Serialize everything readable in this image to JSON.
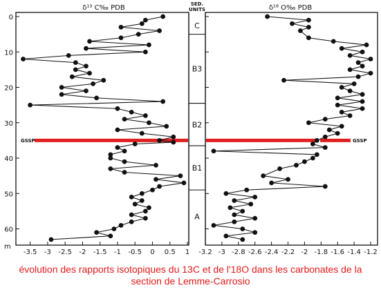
{
  "caption": {
    "line1": "évolution des rapports isotopiques du 13C et de l'18O dans les carbonates de la",
    "line2": "section de Lemme-Carrosio"
  },
  "colors": {
    "gssp_line": "#e02020",
    "ink": "#111111",
    "caption": "#e11a1a"
  },
  "chart_data": [
    {
      "type": "line",
      "title": "δ¹³ C‰ PDB",
      "ylabel": "m",
      "xlim": [
        -3.75,
        1
      ],
      "ylim": [
        0,
        64
      ],
      "x_ticks": [
        "-3.5",
        "-3",
        "-2.5",
        "-2",
        "-1.5",
        "-1",
        "-0.5",
        "0",
        "0.5",
        "1"
      ],
      "y_ticks": [
        "0",
        "10",
        "20",
        "30",
        "40",
        "50",
        "60"
      ],
      "x_tick_values": [
        -3.5,
        -3,
        -2.5,
        -2,
        -1.5,
        -1,
        -0.5,
        0,
        0.5,
        1
      ],
      "y_tick_values": [
        0,
        10,
        20,
        30,
        40,
        50,
        60
      ],
      "grid": false,
      "marker": "filled-circle",
      "gssp_label": "GSSP",
      "gssp_depth": 35,
      "series": [
        {
          "points": [
            [
              0.3,
              0
            ],
            [
              -0.2,
              1
            ],
            [
              -0.3,
              2
            ],
            [
              -0.9,
              3
            ],
            [
              0.2,
              4
            ],
            [
              -0.4,
              5
            ],
            [
              -0.9,
              6
            ],
            [
              -1.8,
              7
            ],
            [
              -0.1,
              8
            ],
            [
              -1.9,
              9
            ],
            [
              -0.2,
              10
            ],
            [
              -2.4,
              11
            ],
            [
              -3.7,
              12
            ],
            [
              -2.2,
              13
            ],
            [
              -1.9,
              14
            ],
            [
              -2.2,
              15
            ],
            [
              -1.8,
              16
            ],
            [
              -2.3,
              17
            ],
            [
              -1.4,
              18
            ],
            [
              -1.7,
              19
            ],
            [
              -2.6,
              20
            ],
            [
              -1.9,
              21
            ],
            [
              -2.6,
              22
            ],
            [
              -1.6,
              23
            ],
            [
              0.3,
              24
            ],
            [
              -3.5,
              25
            ],
            [
              -1.0,
              26
            ],
            [
              -0.6,
              27
            ],
            [
              -0.2,
              28
            ],
            [
              -0.8,
              29
            ],
            [
              -0.1,
              30
            ],
            [
              0.4,
              31
            ],
            [
              -1.0,
              32
            ],
            [
              -0.3,
              33
            ],
            [
              0.6,
              34
            ],
            [
              0.2,
              35
            ],
            [
              0.6,
              35.5
            ],
            [
              -0.5,
              36
            ],
            [
              -1.0,
              37
            ],
            [
              -0.8,
              38
            ],
            [
              -1.2,
              39
            ],
            [
              -1.2,
              40
            ],
            [
              -0.8,
              41
            ],
            [
              0.1,
              42
            ],
            [
              -1.2,
              43
            ],
            [
              -0.8,
              44
            ],
            [
              0.8,
              45
            ],
            [
              0.1,
              46
            ],
            [
              0.9,
              47
            ],
            [
              0.2,
              48
            ],
            [
              0.0,
              49
            ],
            [
              -0.3,
              50
            ],
            [
              -0.6,
              51
            ],
            [
              -0.3,
              52
            ],
            [
              -0.5,
              53
            ],
            [
              -0.1,
              54
            ],
            [
              -0.2,
              55
            ],
            [
              -0.6,
              56
            ],
            [
              -0.2,
              57
            ],
            [
              -0.6,
              58
            ],
            [
              -0.9,
              59
            ],
            [
              -1.1,
              60
            ],
            [
              -1.6,
              61
            ],
            [
              -1.2,
              62
            ],
            [
              -2.9,
              63
            ]
          ]
        }
      ]
    },
    {
      "type": "line",
      "title": "δ¹⁸ O‰ PDB",
      "xlim": [
        -3.2,
        -1.15
      ],
      "ylim": [
        0,
        64
      ],
      "x_ticks": [
        "-3.2",
        "-3",
        "-2.8",
        "-2.6",
        "-2.4",
        "-2.2",
        "-2",
        "-1.8",
        "-1.6",
        "-1.4",
        "-1.2"
      ],
      "x_tick_values": [
        -3.2,
        -3.0,
        -2.8,
        -2.6,
        -2.4,
        -2.2,
        -2.0,
        -1.8,
        -1.6,
        -1.4,
        -1.2
      ],
      "grid": false,
      "marker": "filled-circle",
      "gssp_label": "GSSP",
      "gssp_depth": 35,
      "series": [
        {
          "points": [
            [
              -2.45,
              0
            ],
            [
              -1.95,
              1
            ],
            [
              -2.15,
              2
            ],
            [
              -1.95,
              3
            ],
            [
              -2.05,
              4
            ],
            [
              -1.95,
              6
            ],
            [
              -1.65,
              7
            ],
            [
              -1.25,
              8
            ],
            [
              -1.55,
              9
            ],
            [
              -1.3,
              10
            ],
            [
              -1.45,
              11
            ],
            [
              -1.2,
              12
            ],
            [
              -1.35,
              13
            ],
            [
              -1.3,
              14
            ],
            [
              -1.45,
              15
            ],
            [
              -1.2,
              16
            ],
            [
              -1.35,
              17
            ],
            [
              -2.25,
              18
            ],
            [
              -1.4,
              19
            ],
            [
              -1.55,
              20
            ],
            [
              -1.45,
              21
            ],
            [
              -1.3,
              22
            ],
            [
              -1.6,
              23
            ],
            [
              -1.3,
              24
            ],
            [
              -1.6,
              25
            ],
            [
              -1.3,
              26
            ],
            [
              -1.55,
              27
            ],
            [
              -1.45,
              28
            ],
            [
              -1.75,
              29
            ],
            [
              -1.95,
              30
            ],
            [
              -1.55,
              31
            ],
            [
              -1.7,
              32
            ],
            [
              -1.6,
              33
            ],
            [
              -1.75,
              34
            ],
            [
              -1.85,
              35
            ],
            [
              -1.9,
              36
            ],
            [
              -1.75,
              37
            ],
            [
              -3.1,
              38
            ],
            [
              -1.85,
              39
            ],
            [
              -1.9,
              40
            ],
            [
              -2.0,
              41
            ],
            [
              -2.1,
              42
            ],
            [
              -2.3,
              43
            ],
            [
              -2.5,
              45
            ],
            [
              -2.2,
              46
            ],
            [
              -2.4,
              47
            ],
            [
              -1.75,
              48
            ],
            [
              -2.7,
              49
            ],
            [
              -2.95,
              50
            ],
            [
              -2.6,
              51
            ],
            [
              -2.85,
              52
            ],
            [
              -2.65,
              53
            ],
            [
              -2.9,
              54
            ],
            [
              -2.75,
              55
            ],
            [
              -2.85,
              56
            ],
            [
              -2.6,
              57
            ],
            [
              -2.85,
              58
            ],
            [
              -3.1,
              59
            ],
            [
              -2.75,
              60
            ],
            [
              -2.6,
              61
            ],
            [
              -2.95,
              62
            ],
            [
              -2.75,
              63
            ]
          ]
        }
      ]
    }
  ],
  "sed_units": {
    "title_line1": "SED.",
    "title_line2": "UNITS",
    "units": [
      {
        "label": "C",
        "from": 0,
        "to": 5
      },
      {
        "label": "B3",
        "from": 5,
        "to": 24.5
      },
      {
        "label": "B2",
        "from": 24.5,
        "to": 36.5
      },
      {
        "label": "B1",
        "from": 36.5,
        "to": 49
      },
      {
        "label": "A",
        "from": 49,
        "to": 64
      }
    ]
  }
}
